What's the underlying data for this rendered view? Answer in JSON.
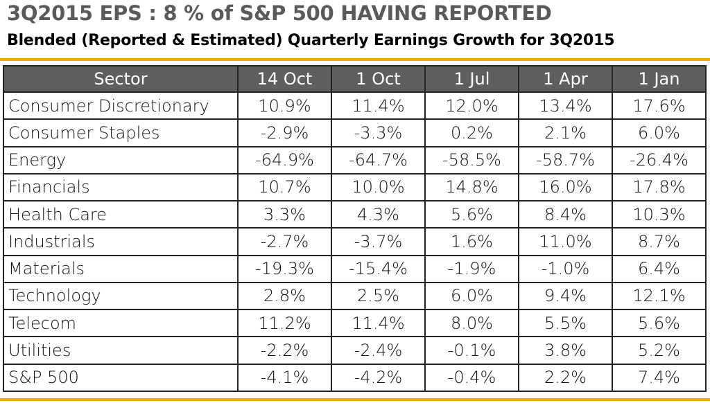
{
  "title": "3Q2015 EPS : 8 % of S&P 500 HAVING REPORTED",
  "subtitle": "Blended (Reported & Estimated) Quarterly Earnings Growth for 3Q2015",
  "colors": {
    "accent": "#f2a900",
    "header_bg": "#5f5f5f",
    "title": "#5a5a5a"
  },
  "chart_data": {
    "type": "table",
    "title": "3Q2015 EPS : 8 % of S&P 500 HAVING REPORTED",
    "subtitle": "Blended (Reported & Estimated) Quarterly Earnings Growth for 3Q2015",
    "columns": [
      "Sector",
      "14 Oct",
      "1 Oct",
      "1 Jul",
      "1 Apr",
      "1 Jan"
    ],
    "rows": [
      [
        "Consumer Discretionary",
        "10.9%",
        "11.4%",
        "12.0%",
        "13.4%",
        "17.6%"
      ],
      [
        "Consumer Staples",
        "-2.9%",
        "-3.3%",
        "0.2%",
        "2.1%",
        "6.0%"
      ],
      [
        "Energy",
        "-64.9%",
        "-64.7%",
        "-58.5%",
        "-58.7%",
        "-26.4%"
      ],
      [
        "Financials",
        "10.7%",
        "10.0%",
        "14.8%",
        "16.0%",
        "17.8%"
      ],
      [
        "Health Care",
        "3.3%",
        "4.3%",
        "5.6%",
        "8.4%",
        "10.3%"
      ],
      [
        "Industrials",
        "-2.7%",
        "-3.7%",
        "1.6%",
        "11.0%",
        "8.7%"
      ],
      [
        "Materials",
        "-19.3%",
        "-15.4%",
        "-1.9%",
        "-1.0%",
        "6.4%"
      ],
      [
        "Technology",
        "2.8%",
        "2.5%",
        "6.0%",
        "9.4%",
        "12.1%"
      ],
      [
        "Telecom",
        "11.2%",
        "11.4%",
        "8.0%",
        "5.5%",
        "5.6%"
      ],
      [
        "Utilities",
        "-2.2%",
        "-2.4%",
        "-0.1%",
        "3.8%",
        "5.2%"
      ],
      [
        "S&P 500",
        "-4.1%",
        "-4.2%",
        "-0.4%",
        "2.2%",
        "7.4%"
      ]
    ]
  }
}
